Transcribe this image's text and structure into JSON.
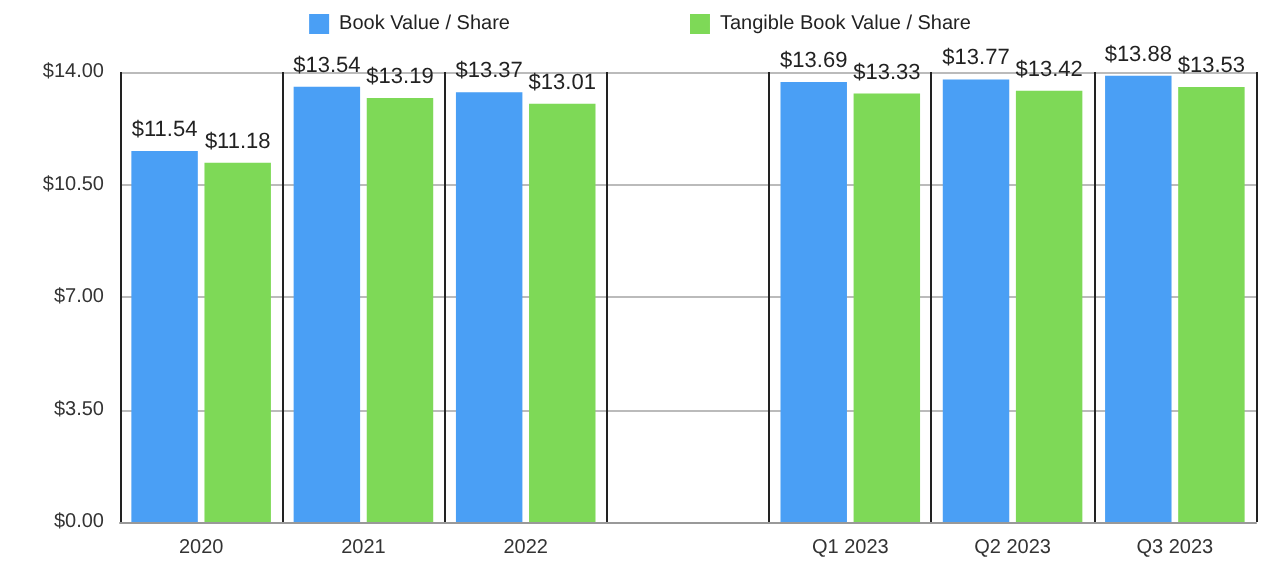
{
  "chart_data": {
    "type": "bar",
    "categories": [
      "2020",
      "2021",
      "2022",
      null,
      "Q1 2023",
      "Q2 2023",
      "Q3 2023"
    ],
    "series": [
      {
        "name": "Book Value / Share",
        "color": "#4a9ff5",
        "values": [
          11.54,
          13.54,
          13.37,
          null,
          13.69,
          13.77,
          13.88
        ],
        "value_labels": [
          "$11.54",
          "$13.54",
          "$13.37",
          null,
          "$13.69",
          "$13.77",
          "$13.88"
        ]
      },
      {
        "name": "Tangible Book Value / Share",
        "color": "#7ed957",
        "values": [
          11.18,
          13.19,
          13.01,
          null,
          13.33,
          13.42,
          13.53
        ],
        "value_labels": [
          "$11.18",
          "$13.19",
          "$13.01",
          null,
          "$13.33",
          "$13.42",
          "$13.53"
        ]
      }
    ],
    "ylim": [
      0,
      14
    ],
    "yticks": [
      {
        "value": 0,
        "label": "$0.00"
      },
      {
        "value": 3.5,
        "label": "$3.50"
      },
      {
        "value": 7,
        "label": "$7.00"
      },
      {
        "value": 10.5,
        "label": "$10.50"
      },
      {
        "value": 14,
        "label": "$14.00"
      }
    ],
    "grid": true,
    "legend": "top"
  }
}
